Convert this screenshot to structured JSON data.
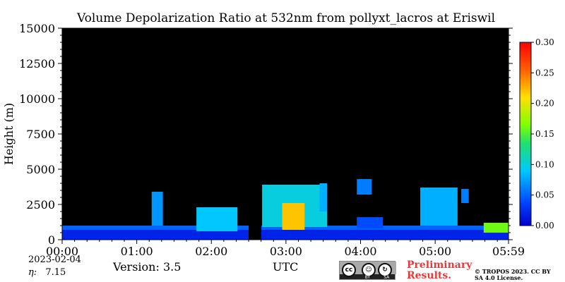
{
  "chart_data": {
    "type": "heatmap",
    "title": "Volume Depolarization Ratio at 532nm from pollyxt_lacros at Eriswil",
    "ylabel": "Height (m)",
    "xlabel": "UTC",
    "x_ticks": [
      "00:00",
      "01:00",
      "02:00",
      "03:00",
      "04:00",
      "05:00",
      "05:59"
    ],
    "x_tick_hours": [
      0,
      1,
      2,
      3,
      4,
      5,
      5.983
    ],
    "xlim_hours": [
      0,
      5.983
    ],
    "y_ticks": [
      0,
      2500,
      5000,
      7500,
      10000,
      12500,
      15000
    ],
    "y_tick_labels": [
      "0",
      "2500",
      "5000",
      "7500",
      "10000",
      "12500",
      "15000"
    ],
    "ylim": [
      0,
      15000
    ],
    "colorbar": {
      "range": [
        0,
        0.3
      ],
      "colormap": "jet",
      "ticks": [
        0,
        0.05,
        0.1,
        0.15,
        0.2,
        0.25,
        0.3
      ],
      "tick_labels": [
        "0.00",
        "0.05",
        "0.10",
        "0.15",
        "0.20",
        "0.25",
        "0.30"
      ]
    },
    "background_color": "#000000",
    "data_gap_hours": [
      2.5,
      2.67
    ],
    "features": [
      {
        "t0": 0.0,
        "t1": 5.983,
        "h0": 0,
        "h1": 700,
        "v": 0.02
      },
      {
        "t0": 0.0,
        "t1": 5.983,
        "h0": 700,
        "h1": 1000,
        "v": 0.05
      },
      {
        "t0": 1.8,
        "t1": 2.35,
        "h0": 600,
        "h1": 2300,
        "v": 0.09
      },
      {
        "t0": 1.2,
        "t1": 1.35,
        "h0": 1000,
        "h1": 3400,
        "v": 0.07
      },
      {
        "t0": 2.68,
        "t1": 3.55,
        "h0": 900,
        "h1": 3900,
        "v": 0.1
      },
      {
        "t0": 2.95,
        "t1": 3.25,
        "h0": 700,
        "h1": 2600,
        "v": 0.22
      },
      {
        "t0": 3.45,
        "t1": 3.55,
        "h0": 2000,
        "h1": 4000,
        "v": 0.08
      },
      {
        "t0": 3.95,
        "t1": 4.15,
        "h0": 3200,
        "h1": 4300,
        "v": 0.06
      },
      {
        "t0": 3.95,
        "t1": 4.3,
        "h0": 800,
        "h1": 1600,
        "v": 0.04
      },
      {
        "t0": 4.8,
        "t1": 5.3,
        "h0": 1000,
        "h1": 3700,
        "v": 0.08
      },
      {
        "t0": 5.35,
        "t1": 5.45,
        "h0": 2600,
        "h1": 3600,
        "v": 0.06
      },
      {
        "t0": 5.65,
        "t1": 5.983,
        "h0": 500,
        "h1": 1200,
        "v": 0.16
      }
    ]
  },
  "footer": {
    "date": "2023-02-04",
    "eta_label": "η:",
    "eta_value": "7.15",
    "version": "Version: 3.5",
    "license_badge_labels": [
      "BY",
      "SA"
    ],
    "preliminary": "Preliminary Results.",
    "copyright": "© TROPOS 2023. CC BY SA 4.0 License."
  }
}
